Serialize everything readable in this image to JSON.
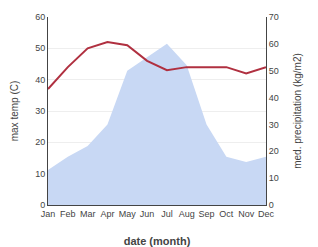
{
  "chart_data": {
    "type": "line",
    "categories": [
      "Jan",
      "Feb",
      "Mar",
      "Apr",
      "May",
      "Jun",
      "Jul",
      "Aug",
      "Sep",
      "Oct",
      "Nov",
      "Dec"
    ],
    "series": [
      {
        "type": "area",
        "axis": "y2",
        "color": "#c8d8f4",
        "values": [
          13,
          18,
          22,
          30,
          50,
          55,
          60,
          52,
          30,
          18,
          16,
          18
        ]
      },
      {
        "type": "line",
        "color": "#b03040",
        "values": [
          37,
          44,
          50,
          52,
          51,
          46,
          43,
          44,
          44,
          44,
          42,
          44
        ]
      }
    ],
    "xlabel": "date (month)",
    "ylabel": "max temp (C)",
    "y2label": "med. precipitation (kg/m2)",
    "ylim": [
      0,
      60
    ],
    "yticks": [
      0,
      10,
      20,
      30,
      40,
      50,
      60
    ],
    "y2lim": [
      0,
      70
    ],
    "y2ticks": [
      0,
      10,
      20,
      30,
      40,
      50,
      60,
      70
    ],
    "grid": true
  }
}
